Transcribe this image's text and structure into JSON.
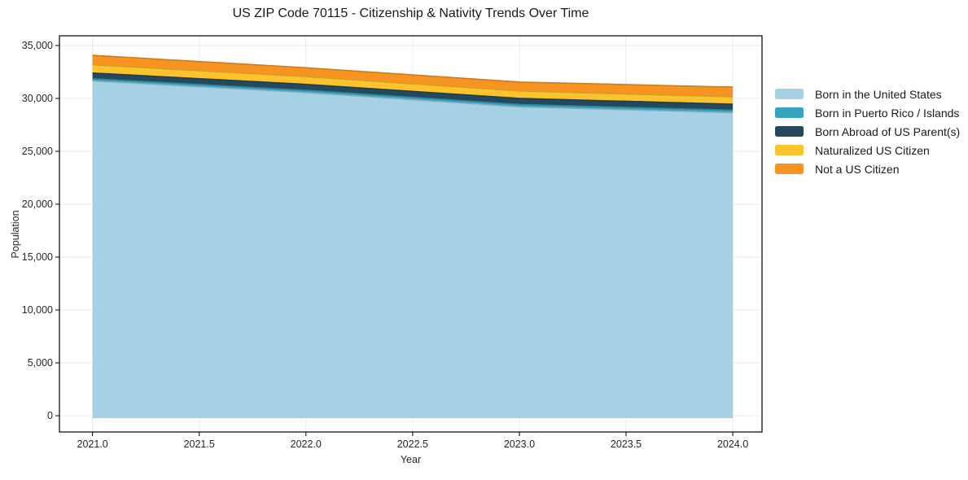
{
  "chart_data": {
    "type": "area",
    "stacked": true,
    "title": "US ZIP Code 70115 - Citizenship & Nativity Trends Over Time",
    "xlabel": "Year",
    "ylabel": "Population",
    "x": [
      2021,
      2022,
      2023,
      2024
    ],
    "series": [
      {
        "name": "Born in the United States",
        "color": "#A6D0E4",
        "values": [
          31650,
          30550,
          29200,
          28650
        ]
      },
      {
        "name": "Born in Puerto Rico / Islands",
        "color": "#37A3BE",
        "values": [
          210,
          220,
          230,
          240
        ]
      },
      {
        "name": "Born Abroad of US Parent(s)",
        "color": "#24495C",
        "values": [
          545,
          560,
          575,
          565
        ]
      },
      {
        "name": "Naturalized US Citizen",
        "color": "#FCC32C",
        "values": [
          770,
          730,
          690,
          690
        ]
      },
      {
        "name": "Not a US Citizen",
        "color": "#F79421",
        "values": [
          900,
          840,
          855,
          925
        ]
      }
    ],
    "totals": [
      34075,
      32900,
      31550,
      31070
    ],
    "baseline": -230,
    "xlim": [
      2020.845,
      2024.137
    ],
    "ylim": [
      -1538,
      35920
    ],
    "xticks": {
      "values": [
        2021.0,
        2021.5,
        2022.0,
        2022.5,
        2023.0,
        2023.5,
        2024.0
      ],
      "labels": [
        "2021.0",
        "2021.5",
        "2022.0",
        "2022.5",
        "2023.0",
        "2023.5",
        "2024.0"
      ]
    },
    "yticks": {
      "values": [
        0,
        5000,
        10000,
        15000,
        20000,
        25000,
        30000,
        35000
      ],
      "labels": [
        "0",
        "5,000",
        "10,000",
        "15,000",
        "20,000",
        "25,000",
        "30,000",
        "35,000"
      ]
    },
    "grid": true,
    "legend_position": "right",
    "colors": {
      "grid": "#EAEAEA",
      "spine": "#000000",
      "tick_label": "#262626",
      "text": "#1a1a1a",
      "background": "#FFFFFF"
    }
  }
}
